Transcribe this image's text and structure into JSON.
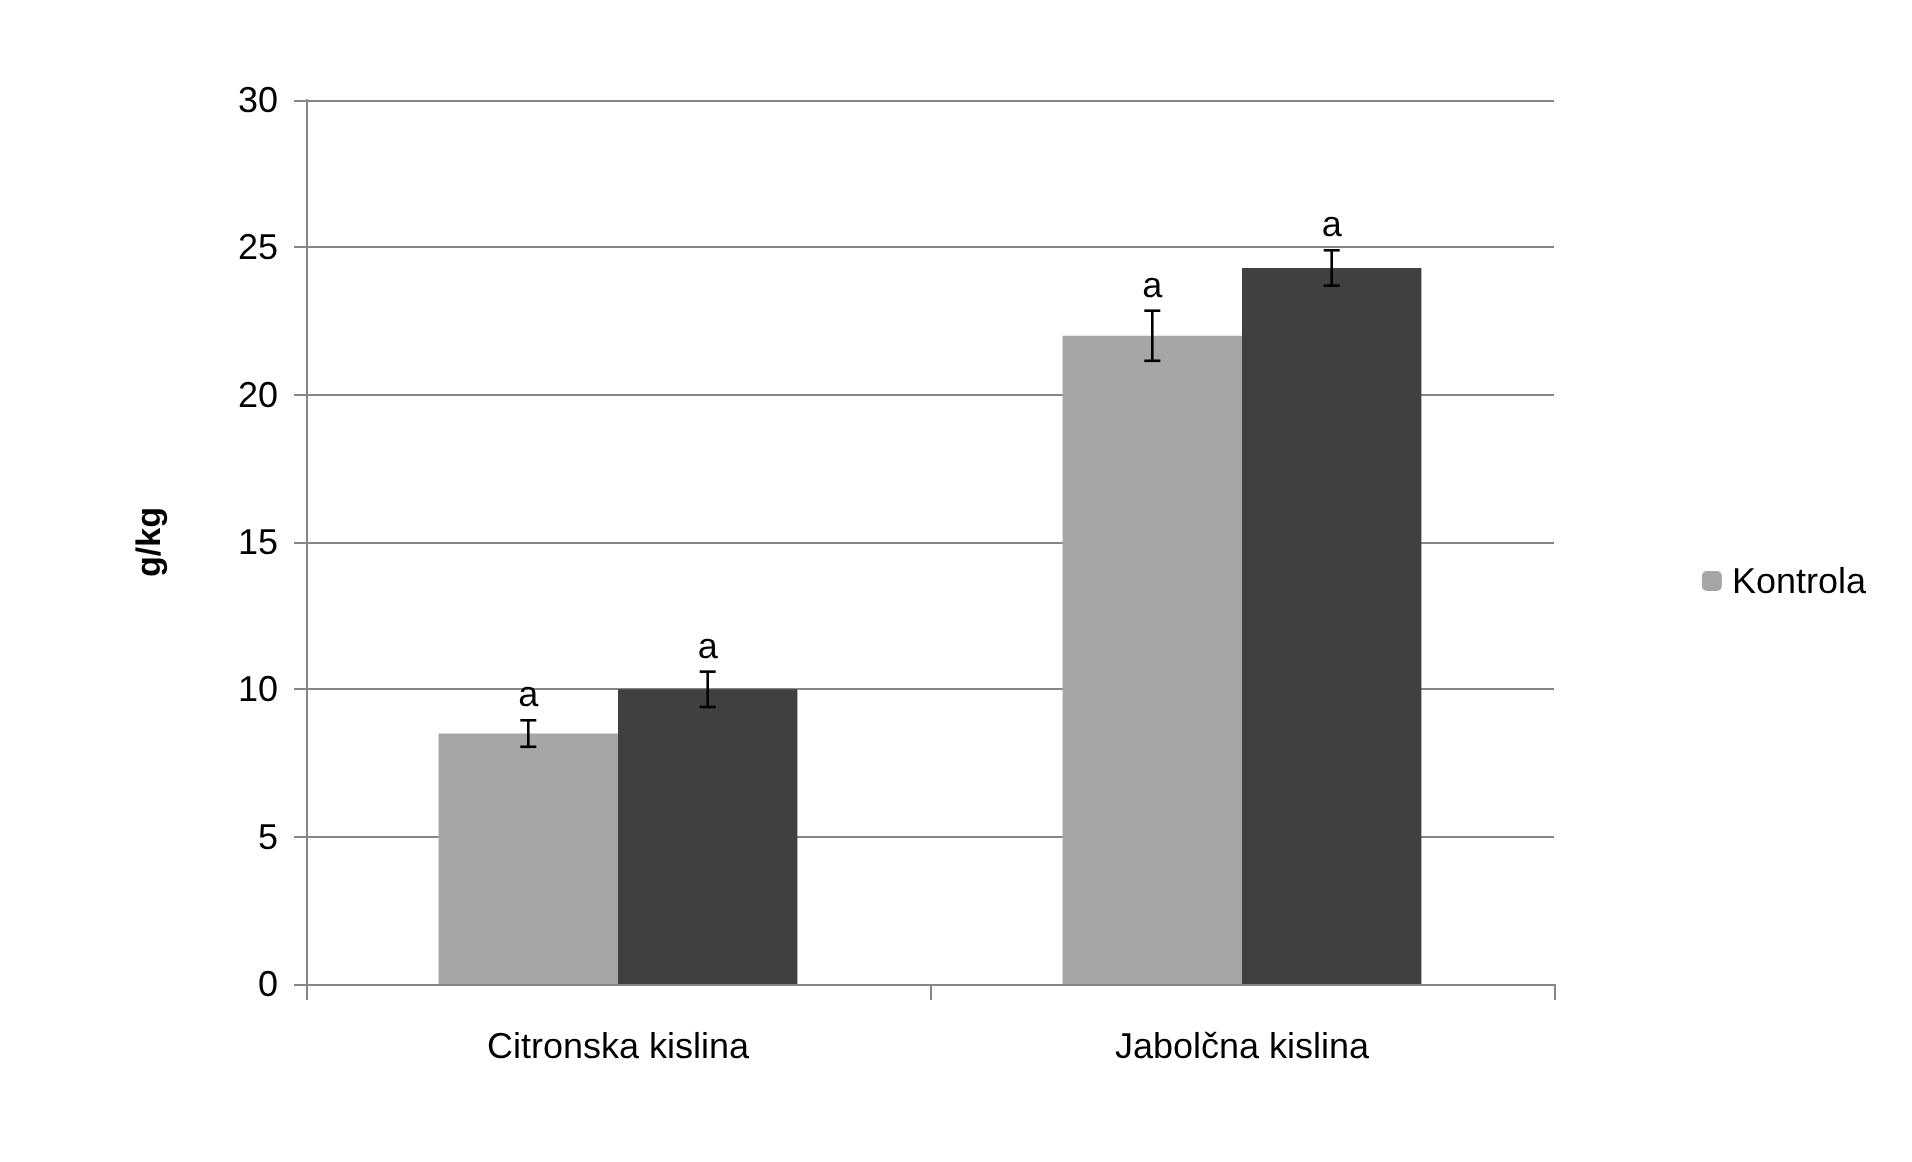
{
  "chart_data": {
    "type": "bar",
    "ylabel": "g/kg",
    "categories": [
      "Citronska kislina",
      "Jabolčna kislina"
    ],
    "series": [
      {
        "name": "Kontrola",
        "color": "#a6a6a6",
        "values": [
          8.5,
          22.0
        ],
        "errors": [
          0.45,
          0.85
        ],
        "value_labels": [
          "a",
          "a"
        ]
      },
      {
        "color": "#404040",
        "values": [
          10.0,
          24.3
        ],
        "errors": [
          0.6,
          0.6
        ],
        "value_labels": [
          "a",
          "a"
        ]
      }
    ],
    "ylim": [
      0,
      30
    ],
    "yticks": [
      0,
      5,
      10,
      15,
      20,
      25,
      30
    ],
    "grid": "y",
    "legend": "right"
  }
}
